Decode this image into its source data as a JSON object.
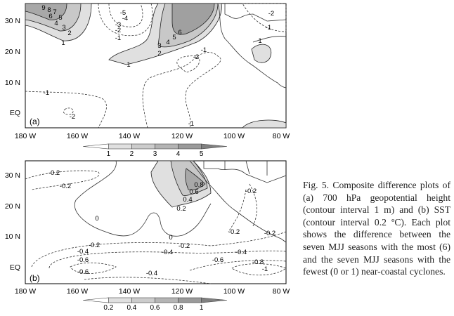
{
  "panels": [
    {
      "label": "(a)",
      "lat_ticks": [
        "30 N",
        "20 N",
        "10 N",
        "EQ"
      ],
      "lon_ticks": [
        "180 W",
        "160 W",
        "140 W",
        "120 W",
        "100 W",
        "80 W"
      ],
      "colorbar_ticks": [
        "1",
        "2",
        "3",
        "4",
        "5"
      ],
      "colorbar_colors": [
        "#ffffff",
        "#e0e0e0",
        "#cccccc",
        "#b4b4b4",
        "#9a9a9a",
        "#808080"
      ],
      "contour_labels": [
        "9",
        "8",
        "7",
        "6",
        "5",
        "4",
        "3",
        "2",
        "1",
        "-5",
        "-4",
        "-3",
        "-2",
        "-1",
        "6",
        "5",
        "4",
        "3",
        "2",
        "1",
        "-1",
        "-2",
        "-1",
        "-2",
        "-1",
        "1",
        "-2",
        "-1"
      ]
    },
    {
      "label": "(b)",
      "lat_ticks": [
        "30 N",
        "20 N",
        "10 N",
        "EQ"
      ],
      "lon_ticks": [
        "180 W",
        "160 W",
        "140 W",
        "120 W",
        "100 W",
        "80 W"
      ],
      "colorbar_ticks": [
        "0.2",
        "0.4",
        "0.6",
        "0.8",
        "1"
      ],
      "colorbar_colors": [
        "#ffffff",
        "#e0e0e0",
        "#cccccc",
        "#b4b4b4",
        "#9a9a9a",
        "#808080"
      ],
      "contour_labels": [
        "-0.2",
        "-0.2",
        "0.8",
        "0.6",
        "0.4",
        "0.2",
        "0",
        "0",
        "-0.2",
        "-0.2",
        "-0.2",
        "-0.2",
        "-0.4",
        "-0.4",
        "-0.4",
        "-0.6",
        "-0.6",
        "-0.4",
        "-0.6",
        "-0.8",
        "-1",
        "-0.2"
      ]
    }
  ],
  "caption": "Fig. 5. Composite difference plots of (a) 700 hPa geopotential height (contour interval 1 m) and (b) SST (contour interval 0.2 ºC). Each plot shows the difference between the seven MJJ seasons with the most (6) and the seven MJJ seasons with the fewest (0 or 1) near-coastal cyclones."
}
